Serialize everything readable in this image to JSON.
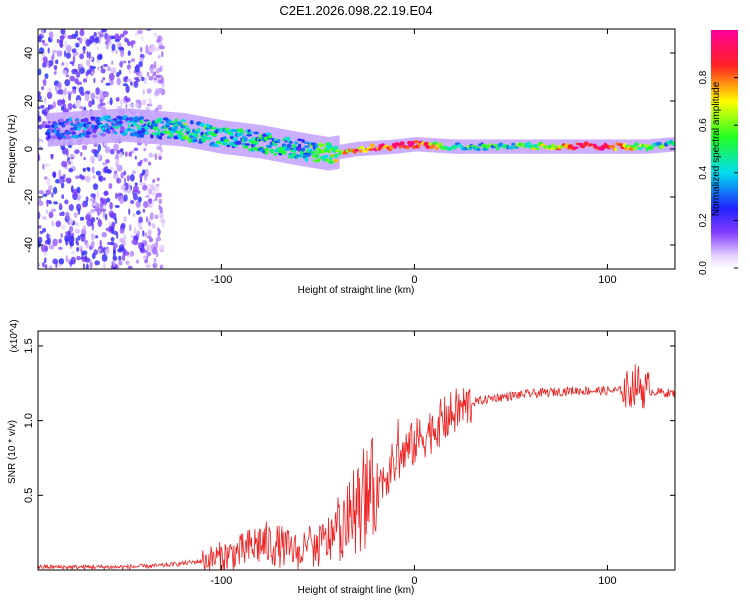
{
  "title": "C2E1.2026.098.22.19.E04",
  "chart_data": [
    {
      "type": "heatmap",
      "name": "spectrogram",
      "xlabel": "Height of straight line (km)",
      "ylabel": "Frequency (Hz)",
      "xlim": [
        -195,
        135
      ],
      "ylim": [
        -50,
        50
      ],
      "xticks": [
        -100,
        0,
        100
      ],
      "yticks": [
        -40,
        -20,
        0,
        20,
        40
      ],
      "colorbar": {
        "label": "Normalized spectral amplitude",
        "range": [
          0.0,
          1.0
        ],
        "ticks": [
          0.0,
          0.2,
          0.4,
          0.6,
          0.8
        ],
        "tick_labels": [
          "0.0",
          "0.2",
          "0.4",
          "0.6",
          "0.8"
        ]
      },
      "ridge": {
        "height_km": [
          -190,
          -150,
          -120,
          -100,
          -80,
          -60,
          -45,
          -30,
          -10,
          0,
          20,
          50,
          80,
          100,
          120,
          135
        ],
        "frequency_hz": [
          8,
          10,
          8,
          5,
          3,
          0,
          -2,
          0,
          1,
          2,
          1,
          1,
          1,
          1,
          1,
          2
        ],
        "amplitude": [
          0.2,
          0.3,
          0.45,
          0.4,
          0.4,
          0.35,
          0.5,
          0.8,
          0.9,
          0.95,
          0.45,
          0.45,
          0.8,
          0.95,
          0.5,
          0.45
        ]
      }
    },
    {
      "type": "line",
      "name": "snr",
      "xlabel": "Height of straight line (km)",
      "ylabel": "SNR (10 * v/v)",
      "scale_label": "(x10^4)",
      "xlim": [
        -195,
        135
      ],
      "ylim": [
        0,
        1.6
      ],
      "xticks": [
        -100,
        0,
        100
      ],
      "yticks": [
        0.5,
        1.0,
        1.5
      ],
      "series": [
        {
          "name": "SNR",
          "color": "#ee2222",
          "x": [
            -195,
            -150,
            -130,
            -110,
            -90,
            -80,
            -70,
            -60,
            -50,
            -40,
            -30,
            -20,
            -10,
            0,
            10,
            20,
            30,
            40,
            60,
            80,
            100,
            110,
            115,
            120,
            135
          ],
          "y": [
            0.02,
            0.02,
            0.03,
            0.06,
            0.12,
            0.18,
            0.16,
            0.12,
            0.15,
            0.25,
            0.4,
            0.55,
            0.72,
            0.85,
            0.95,
            1.05,
            1.12,
            1.15,
            1.18,
            1.2,
            1.2,
            1.2,
            1.25,
            1.2,
            1.18
          ]
        }
      ]
    }
  ],
  "colors": {
    "line": "#ee2222",
    "frame": "#000000"
  }
}
